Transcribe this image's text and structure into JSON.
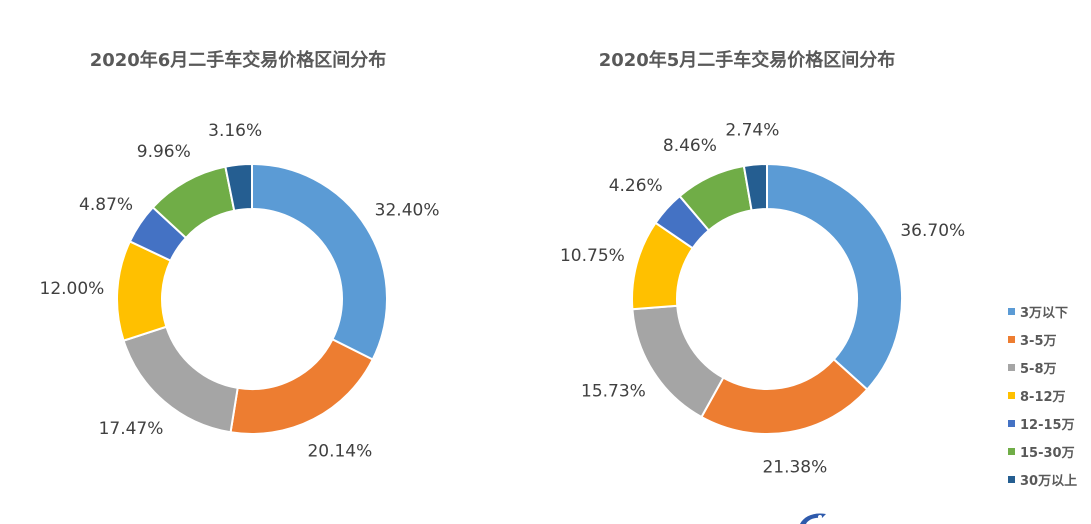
{
  "chart_data": [
    {
      "type": "pie",
      "title": "2020年6月二手车交易价格区间分布",
      "categories": [
        "3万以下",
        "3-5万",
        "5-8万",
        "8-12万",
        "12-15万",
        "15-30万",
        "30万以上"
      ],
      "values": [
        32.4,
        20.14,
        17.47,
        12.0,
        4.87,
        9.96,
        3.16
      ],
      "labels": [
        "32.40%",
        "20.14%",
        "17.47%",
        "12.00%",
        "4.87%",
        "9.96%",
        "3.16%"
      ]
    },
    {
      "type": "pie",
      "title": "2020年5月二手车交易价格区间分布",
      "categories": [
        "3万以下",
        "3-5万",
        "5-8万",
        "8-12万",
        "12-15万",
        "15-30万",
        "30万以上"
      ],
      "values": [
        36.7,
        21.38,
        15.73,
        10.75,
        4.26,
        8.46,
        2.74
      ],
      "labels": [
        "36.70%",
        "21.38%",
        "15.73%",
        "10.75%",
        "4.26%",
        "8.46%",
        "2.74%"
      ]
    }
  ],
  "legend": {
    "position": "right",
    "items": [
      {
        "label": "3万以下",
        "color": "#5B9BD5"
      },
      {
        "label": "3-5万",
        "color": "#ED7D31"
      },
      {
        "label": "5-8万",
        "color": "#A5A5A5"
      },
      {
        "label": "8-12万",
        "color": "#FFC000"
      },
      {
        "label": "12-15万",
        "color": "#4472C4"
      },
      {
        "label": "15-30万",
        "color": "#70AD47"
      },
      {
        "label": "30万以上",
        "color": "#255E91"
      }
    ]
  }
}
